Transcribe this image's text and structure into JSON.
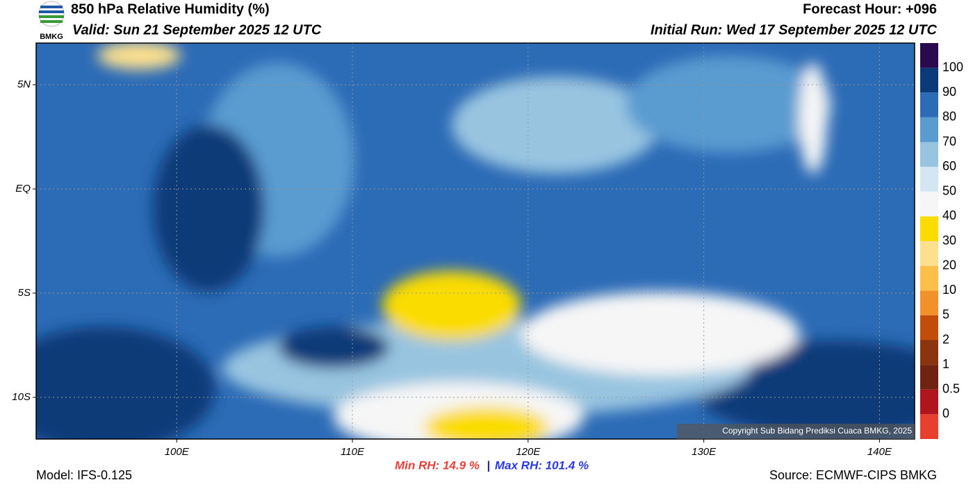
{
  "header": {
    "title": "850 hPa Relative Humidity (%)",
    "valid": "Valid: Sun 21 September 2025 12 UTC",
    "forecast_hour": "Forecast Hour: +096",
    "initial_run": "Initial Run: Wed 17 September 2025 12 UTC",
    "logo_text": "BMKG"
  },
  "map": {
    "xlim": [
      92,
      142
    ],
    "ylim": [
      -12,
      7
    ],
    "xticks": [
      {
        "value": 100,
        "label": "100E"
      },
      {
        "value": 110,
        "label": "110E"
      },
      {
        "value": 120,
        "label": "120E"
      },
      {
        "value": 130,
        "label": "130E"
      },
      {
        "value": 140,
        "label": "140E"
      }
    ],
    "yticks": [
      {
        "value": 5,
        "label": "5N"
      },
      {
        "value": 0,
        "label": "EQ"
      },
      {
        "value": -5,
        "label": "5S"
      },
      {
        "value": -10,
        "label": "10S"
      }
    ],
    "grid": true,
    "copyright": "Copyright Sub Bidang Prediksi Cuaca BMKG, 2025"
  },
  "colorbar": {
    "levels": [
      0,
      0.5,
      1,
      2,
      5,
      10,
      20,
      30,
      40,
      50,
      60,
      70,
      80,
      90,
      100
    ],
    "colors": [
      "#e8402f",
      "#b0141c",
      "#6e2410",
      "#8a3410",
      "#c24d0a",
      "#f2902a",
      "#fcc04a",
      "#fde08e",
      "#fbdc00",
      "#f6f6f6",
      "#d4e6f2",
      "#98c4e0",
      "#5a9bd0",
      "#2c6bb6",
      "#0a3a78",
      "#2a0a4e"
    ]
  },
  "footer": {
    "model": "Model: IFS-0.125",
    "min_rh": "Min RH:  14.9 %",
    "separator": "|",
    "max_rh": "Max RH: 101.4 %",
    "source": "Source: ECMWF-CIPS BMKG"
  }
}
